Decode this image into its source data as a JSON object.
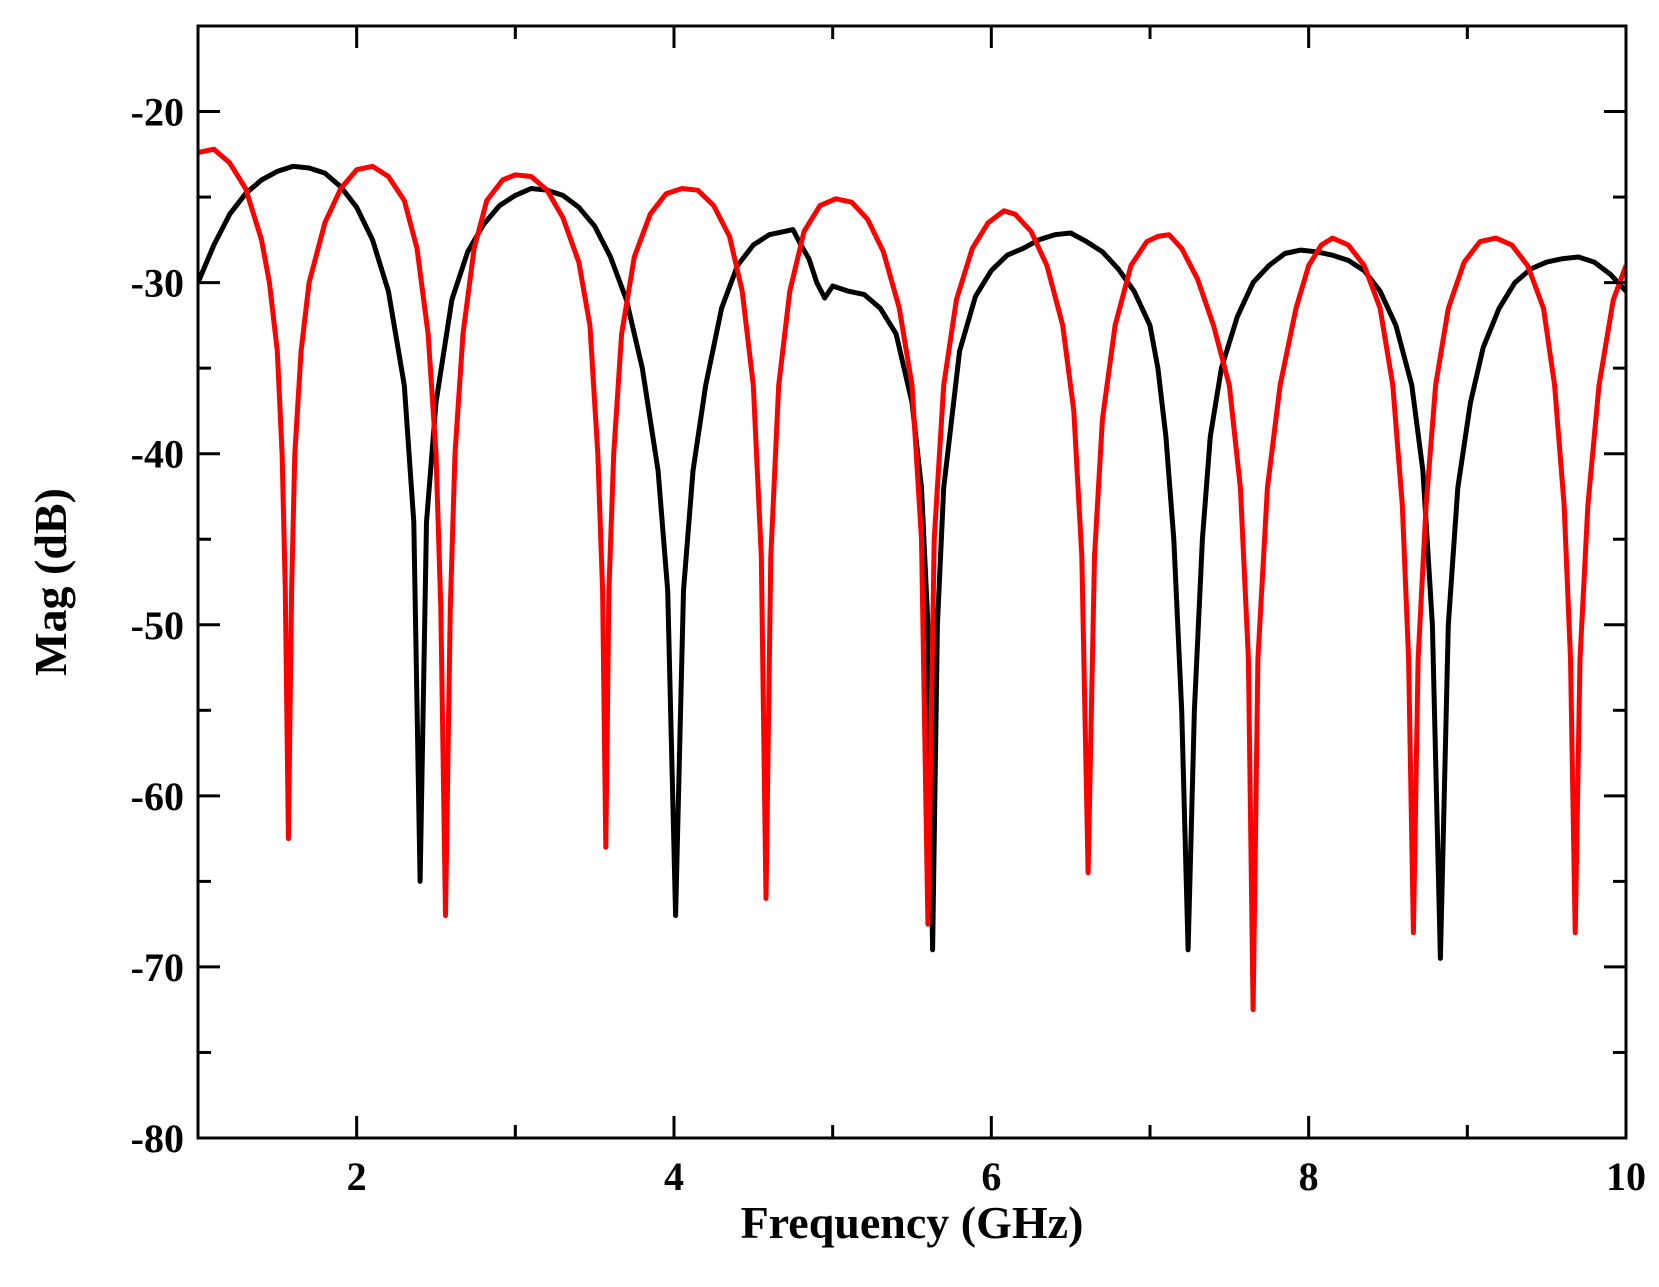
{
  "chart_data": {
    "type": "line",
    "title": "",
    "xlabel": "Frequency (GHz)",
    "ylabel": "Mag (dB)",
    "xlim": [
      1,
      10
    ],
    "ylim": [
      -80,
      -15
    ],
    "grid": false,
    "legend": "none",
    "x_ticks": [
      {
        "value": 2,
        "label": "2"
      },
      {
        "value": 4,
        "label": "4"
      },
      {
        "value": 6,
        "label": "6"
      },
      {
        "value": 8,
        "label": "8"
      },
      {
        "value": 10,
        "label": "10"
      }
    ],
    "y_ticks": [
      {
        "value": -20,
        "label": "-20"
      },
      {
        "value": -30,
        "label": "-30"
      },
      {
        "value": -40,
        "label": "-40"
      },
      {
        "value": -50,
        "label": "-50"
      },
      {
        "value": -60,
        "label": "-60"
      },
      {
        "value": -70,
        "label": "-70"
      },
      {
        "value": -80,
        "label": "-80"
      }
    ],
    "x_minor_step": 1,
    "y_minor_step": 5,
    "series": [
      {
        "name": "black",
        "color": "#000000",
        "points": [
          [
            1.0,
            -30.0
          ],
          [
            1.1,
            -27.8
          ],
          [
            1.2,
            -26.0
          ],
          [
            1.3,
            -24.8
          ],
          [
            1.4,
            -24.0
          ],
          [
            1.5,
            -23.5
          ],
          [
            1.6,
            -23.2
          ],
          [
            1.7,
            -23.3
          ],
          [
            1.8,
            -23.6
          ],
          [
            1.9,
            -24.4
          ],
          [
            2.0,
            -25.6
          ],
          [
            2.1,
            -27.5
          ],
          [
            2.2,
            -30.5
          ],
          [
            2.3,
            -36.0
          ],
          [
            2.36,
            -44.0
          ],
          [
            2.4,
            -65.0
          ],
          [
            2.44,
            -44.0
          ],
          [
            2.5,
            -37.0
          ],
          [
            2.6,
            -31.0
          ],
          [
            2.7,
            -28.2
          ],
          [
            2.8,
            -26.6
          ],
          [
            2.9,
            -25.5
          ],
          [
            3.0,
            -24.9
          ],
          [
            3.1,
            -24.5
          ],
          [
            3.2,
            -24.6
          ],
          [
            3.3,
            -24.9
          ],
          [
            3.4,
            -25.6
          ],
          [
            3.5,
            -26.7
          ],
          [
            3.6,
            -28.5
          ],
          [
            3.7,
            -31.0
          ],
          [
            3.8,
            -35.0
          ],
          [
            3.9,
            -41.0
          ],
          [
            3.96,
            -48.0
          ],
          [
            4.01,
            -67.0
          ],
          [
            4.06,
            -48.0
          ],
          [
            4.12,
            -41.0
          ],
          [
            4.2,
            -36.0
          ],
          [
            4.3,
            -31.5
          ],
          [
            4.4,
            -29.0
          ],
          [
            4.5,
            -27.8
          ],
          [
            4.6,
            -27.2
          ],
          [
            4.7,
            -27.0
          ],
          [
            4.75,
            -26.9
          ],
          [
            4.8,
            -27.8
          ],
          [
            4.85,
            -28.6
          ],
          [
            4.9,
            -30.0
          ],
          [
            4.95,
            -30.9
          ],
          [
            5.0,
            -30.2
          ],
          [
            5.1,
            -30.5
          ],
          [
            5.2,
            -30.7
          ],
          [
            5.3,
            -31.5
          ],
          [
            5.4,
            -33.0
          ],
          [
            5.5,
            -37.0
          ],
          [
            5.56,
            -42.0
          ],
          [
            5.6,
            -50.0
          ],
          [
            5.63,
            -69.0
          ],
          [
            5.66,
            -50.0
          ],
          [
            5.7,
            -42.0
          ],
          [
            5.8,
            -34.0
          ],
          [
            5.9,
            -30.8
          ],
          [
            6.0,
            -29.3
          ],
          [
            6.1,
            -28.4
          ],
          [
            6.2,
            -28.0
          ],
          [
            6.3,
            -27.5
          ],
          [
            6.4,
            -27.2
          ],
          [
            6.5,
            -27.1
          ],
          [
            6.6,
            -27.6
          ],
          [
            6.7,
            -28.2
          ],
          [
            6.8,
            -29.2
          ],
          [
            6.9,
            -30.5
          ],
          [
            7.0,
            -32.5
          ],
          [
            7.05,
            -35.0
          ],
          [
            7.1,
            -39.0
          ],
          [
            7.15,
            -45.0
          ],
          [
            7.2,
            -55.0
          ],
          [
            7.24,
            -69.0
          ],
          [
            7.28,
            -55.0
          ],
          [
            7.33,
            -45.0
          ],
          [
            7.38,
            -39.0
          ],
          [
            7.45,
            -35.0
          ],
          [
            7.55,
            -32.0
          ],
          [
            7.65,
            -30.0
          ],
          [
            7.75,
            -29.0
          ],
          [
            7.85,
            -28.3
          ],
          [
            7.95,
            -28.1
          ],
          [
            8.05,
            -28.2
          ],
          [
            8.15,
            -28.4
          ],
          [
            8.25,
            -28.7
          ],
          [
            8.35,
            -29.3
          ],
          [
            8.45,
            -30.5
          ],
          [
            8.55,
            -32.5
          ],
          [
            8.65,
            -36.0
          ],
          [
            8.72,
            -41.0
          ],
          [
            8.78,
            -50.0
          ],
          [
            8.83,
            -69.5
          ],
          [
            8.88,
            -50.0
          ],
          [
            8.94,
            -42.0
          ],
          [
            9.02,
            -37.0
          ],
          [
            9.1,
            -33.8
          ],
          [
            9.2,
            -31.5
          ],
          [
            9.3,
            -30.0
          ],
          [
            9.4,
            -29.2
          ],
          [
            9.5,
            -28.8
          ],
          [
            9.6,
            -28.6
          ],
          [
            9.7,
            -28.5
          ],
          [
            9.8,
            -28.8
          ],
          [
            9.9,
            -29.5
          ],
          [
            10.0,
            -30.5
          ]
        ]
      },
      {
        "name": "red",
        "color": "#ff0000",
        "points": [
          [
            1.0,
            -22.4
          ],
          [
            1.1,
            -22.2
          ],
          [
            1.2,
            -23.0
          ],
          [
            1.3,
            -24.5
          ],
          [
            1.4,
            -27.5
          ],
          [
            1.45,
            -30.0
          ],
          [
            1.5,
            -34.0
          ],
          [
            1.53,
            -40.0
          ],
          [
            1.55,
            -48.0
          ],
          [
            1.57,
            -62.5
          ],
          [
            1.59,
            -48.0
          ],
          [
            1.61,
            -40.0
          ],
          [
            1.65,
            -34.0
          ],
          [
            1.7,
            -30.0
          ],
          [
            1.8,
            -26.5
          ],
          [
            1.9,
            -24.5
          ],
          [
            2.0,
            -23.4
          ],
          [
            2.1,
            -23.2
          ],
          [
            2.2,
            -23.8
          ],
          [
            2.3,
            -25.2
          ],
          [
            2.38,
            -28.0
          ],
          [
            2.45,
            -33.0
          ],
          [
            2.5,
            -40.0
          ],
          [
            2.53,
            -49.0
          ],
          [
            2.56,
            -67.0
          ],
          [
            2.59,
            -49.0
          ],
          [
            2.62,
            -40.0
          ],
          [
            2.67,
            -33.0
          ],
          [
            2.74,
            -28.0
          ],
          [
            2.82,
            -25.2
          ],
          [
            2.92,
            -24.0
          ],
          [
            3.0,
            -23.7
          ],
          [
            3.1,
            -23.8
          ],
          [
            3.2,
            -24.6
          ],
          [
            3.3,
            -26.2
          ],
          [
            3.4,
            -28.8
          ],
          [
            3.47,
            -32.5
          ],
          [
            3.52,
            -40.0
          ],
          [
            3.55,
            -48.0
          ],
          [
            3.57,
            -63.0
          ],
          [
            3.59,
            -48.0
          ],
          [
            3.62,
            -40.0
          ],
          [
            3.67,
            -33.0
          ],
          [
            3.75,
            -28.5
          ],
          [
            3.85,
            -26.0
          ],
          [
            3.95,
            -24.8
          ],
          [
            4.05,
            -24.5
          ],
          [
            4.15,
            -24.6
          ],
          [
            4.25,
            -25.5
          ],
          [
            4.35,
            -27.3
          ],
          [
            4.43,
            -30.5
          ],
          [
            4.5,
            -36.0
          ],
          [
            4.55,
            -46.0
          ],
          [
            4.58,
            -66.0
          ],
          [
            4.61,
            -46.0
          ],
          [
            4.66,
            -36.0
          ],
          [
            4.73,
            -30.5
          ],
          [
            4.82,
            -27.0
          ],
          [
            4.92,
            -25.5
          ],
          [
            5.02,
            -25.1
          ],
          [
            5.12,
            -25.3
          ],
          [
            5.22,
            -26.3
          ],
          [
            5.32,
            -28.2
          ],
          [
            5.42,
            -31.5
          ],
          [
            5.5,
            -36.0
          ],
          [
            5.56,
            -45.0
          ],
          [
            5.6,
            -67.5
          ],
          [
            5.64,
            -45.0
          ],
          [
            5.7,
            -36.0
          ],
          [
            5.78,
            -31.0
          ],
          [
            5.88,
            -28.0
          ],
          [
            5.98,
            -26.5
          ],
          [
            6.08,
            -25.8
          ],
          [
            6.15,
            -26.0
          ],
          [
            6.25,
            -27.0
          ],
          [
            6.35,
            -29.0
          ],
          [
            6.45,
            -32.5
          ],
          [
            6.52,
            -37.5
          ],
          [
            6.57,
            -46.0
          ],
          [
            6.61,
            -64.5
          ],
          [
            6.65,
            -46.0
          ],
          [
            6.7,
            -38.0
          ],
          [
            6.78,
            -32.5
          ],
          [
            6.88,
            -29.0
          ],
          [
            6.98,
            -27.6
          ],
          [
            7.05,
            -27.3
          ],
          [
            7.12,
            -27.2
          ],
          [
            7.2,
            -28.0
          ],
          [
            7.3,
            -29.8
          ],
          [
            7.4,
            -32.5
          ],
          [
            7.5,
            -36.0
          ],
          [
            7.57,
            -42.0
          ],
          [
            7.62,
            -52.0
          ],
          [
            7.65,
            -72.5
          ],
          [
            7.68,
            -52.0
          ],
          [
            7.74,
            -42.0
          ],
          [
            7.82,
            -36.0
          ],
          [
            7.92,
            -31.5
          ],
          [
            8.0,
            -29.0
          ],
          [
            8.08,
            -27.8
          ],
          [
            8.15,
            -27.4
          ],
          [
            8.25,
            -27.8
          ],
          [
            8.35,
            -29.0
          ],
          [
            8.45,
            -31.5
          ],
          [
            8.53,
            -36.0
          ],
          [
            8.59,
            -43.0
          ],
          [
            8.63,
            -52.0
          ],
          [
            8.66,
            -68.0
          ],
          [
            8.69,
            -52.0
          ],
          [
            8.74,
            -43.0
          ],
          [
            8.8,
            -36.0
          ],
          [
            8.88,
            -31.5
          ],
          [
            8.98,
            -28.8
          ],
          [
            9.08,
            -27.6
          ],
          [
            9.18,
            -27.4
          ],
          [
            9.28,
            -27.8
          ],
          [
            9.38,
            -29.0
          ],
          [
            9.48,
            -31.5
          ],
          [
            9.55,
            -36.0
          ],
          [
            9.61,
            -43.0
          ],
          [
            9.65,
            -52.0
          ],
          [
            9.68,
            -68.0
          ],
          [
            9.71,
            -52.0
          ],
          [
            9.76,
            -43.0
          ],
          [
            9.83,
            -36.0
          ],
          [
            9.92,
            -31.0
          ],
          [
            10.0,
            -29.0
          ]
        ]
      }
    ]
  }
}
